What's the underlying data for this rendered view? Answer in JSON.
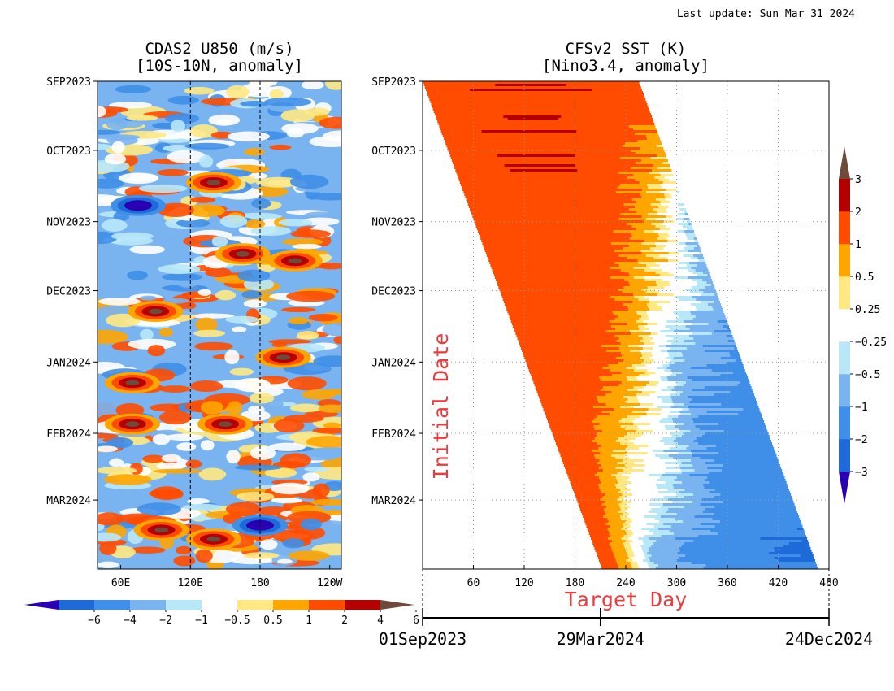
{
  "header": {
    "last_update": "Last update: Sun Mar 31 2024"
  },
  "colors": {
    "u850_scale": [
      "#2a00b5",
      "#1d6ad8",
      "#3f8ee8",
      "#7ab4f0",
      "#b8e8f8",
      "#ffffff",
      "#ffe882",
      "#ffa500",
      "#ff4c00",
      "#b40000",
      "#6d4a3a"
    ],
    "sst_scale": [
      "#2a00b5",
      "#1d6ad8",
      "#3f8ee8",
      "#7ab4f0",
      "#b8e8f8",
      "#ffffff",
      "#ffe882",
      "#ffa500",
      "#ff4c00",
      "#b40000",
      "#6d4a3a"
    ],
    "annotation_red": "#ee3a3a"
  },
  "chart_data": [
    {
      "type": "heatmap",
      "title": "CDAS2 U850 (m/s)",
      "subtitle": "[10S-10N, anomaly]",
      "x_ticks": [
        "60E",
        "120E",
        "180",
        "120W"
      ],
      "x_tick_values": [
        60,
        120,
        180,
        240
      ],
      "xlim": [
        40,
        250
      ],
      "reference_lines_x": [
        120,
        180
      ],
      "y_ticks": [
        "SEP2023",
        "OCT2023",
        "NOV2023",
        "DEC2023",
        "JAN2024",
        "FEB2024",
        "MAR2024"
      ],
      "ylim": [
        "2023-09-01",
        "2024-03-31"
      ],
      "colorbar": {
        "orientation": "horizontal",
        "labels": [
          "−6",
          "−4",
          "−2",
          "−1",
          "−0.5",
          "0.5",
          "1",
          "2",
          "4",
          "6"
        ],
        "levels": [
          -6,
          -4,
          -2,
          -1,
          -0.5,
          0.5,
          1,
          2,
          4,
          6
        ]
      },
      "features": [
        {
          "lon": 75,
          "date": "2023-10-25",
          "value": -6
        },
        {
          "lon": 140,
          "date": "2023-10-15",
          "value": 5
        },
        {
          "lon": 165,
          "date": "2023-11-15",
          "value": 5
        },
        {
          "lon": 210,
          "date": "2023-11-18",
          "value": 6
        },
        {
          "lon": 90,
          "date": "2023-12-10",
          "value": 4
        },
        {
          "lon": 200,
          "date": "2023-12-30",
          "value": 5
        },
        {
          "lon": 70,
          "date": "2024-01-10",
          "value": 4
        },
        {
          "lon": 150,
          "date": "2024-01-28",
          "value": 6
        },
        {
          "lon": 70,
          "date": "2024-01-28",
          "value": 4
        },
        {
          "lon": 95,
          "date": "2024-03-14",
          "value": 6
        },
        {
          "lon": 140,
          "date": "2024-03-18",
          "value": 6
        },
        {
          "lon": 180,
          "date": "2024-03-12",
          "value": -6
        }
      ]
    },
    {
      "type": "heatmap",
      "title": "CFSv2 SST (K)",
      "subtitle": "[Nino3.4, anomaly]",
      "xlabel": "Target Day",
      "ylabel": "Initial Date",
      "x_ticks": [
        "60",
        "120",
        "180",
        "240",
        "300",
        "360",
        "420",
        "480"
      ],
      "x_tick_values": [
        60,
        120,
        180,
        240,
        300,
        360,
        420,
        480
      ],
      "xlim": [
        0,
        480
      ],
      "y_ticks": [
        "SEP2023",
        "OCT2023",
        "NOV2023",
        "DEC2023",
        "JAN2024",
        "FEB2024",
        "MAR2024"
      ],
      "ylim": [
        "2023-09-01",
        "2024-03-31"
      ],
      "grid": true,
      "forecast_length_days": 255,
      "date_axis": [
        "01Sep2023",
        "29Mar2024",
        "24Dec2024"
      ],
      "date_axis_values": [
        0,
        210,
        480
      ],
      "colorbar": {
        "orientation": "vertical",
        "labels": [
          "−3",
          "−2",
          "−1",
          "−0.5",
          "−0.25",
          "0.25",
          "0.5",
          "1",
          "2",
          "3"
        ],
        "levels": [
          -3,
          -2,
          -1,
          -0.5,
          -0.25,
          0.25,
          0.5,
          1,
          2,
          3
        ]
      },
      "transects": [
        {
          "init": "2023-09-01",
          "anomaly_by_lead": [
            [
              0,
              1.9
            ],
            [
              150,
              1.9
            ],
            [
              250,
              1.7
            ]
          ]
        },
        {
          "init": "2023-11-01",
          "anomaly_by_lead": [
            [
              0,
              1.9
            ],
            [
              130,
              1.8
            ],
            [
              190,
              1.0
            ],
            [
              230,
              0.2
            ],
            [
              250,
              -0.4
            ]
          ]
        },
        {
          "init": "2024-01-01",
          "anomaly_by_lead": [
            [
              0,
              1.9
            ],
            [
              60,
              1.6
            ],
            [
              110,
              0.9
            ],
            [
              150,
              0.1
            ],
            [
              175,
              -0.6
            ],
            [
              250,
              -1.2
            ]
          ]
        },
        {
          "init": "2024-03-31",
          "anomaly_by_lead": [
            [
              0,
              1.6
            ],
            [
              20,
              0.9
            ],
            [
              40,
              0.2
            ],
            [
              60,
              -0.6
            ],
            [
              100,
              -1.1
            ],
            [
              180,
              -1.8
            ],
            [
              250,
              -2.1
            ]
          ]
        }
      ]
    }
  ]
}
